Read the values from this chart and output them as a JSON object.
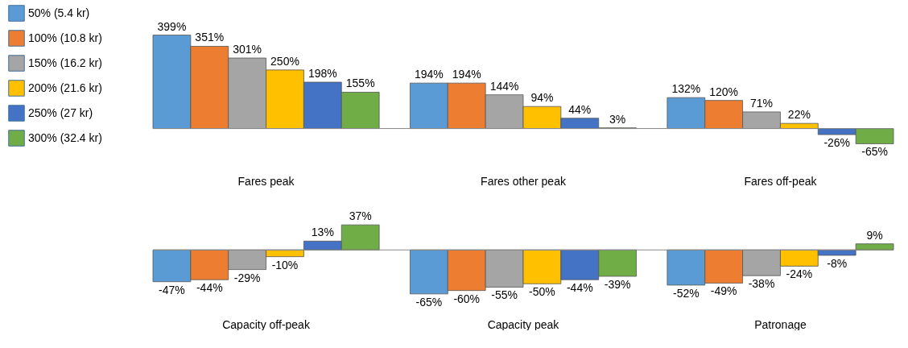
{
  "chart_data": [
    {
      "type": "bar",
      "categories": [
        "Fares peak",
        "Fares other peak",
        "Fares off-peak"
      ],
      "data_labels": true,
      "legend": "top left",
      "series": [
        {
          "name": "50% (5.4 kr)",
          "color": "#5b9bd5",
          "values": [
            399,
            194,
            132
          ],
          "value_labels": [
            "399%",
            "194%",
            "132%"
          ]
        },
        {
          "name": "100% (10.8 kr)",
          "color": "#ed7d31",
          "values": [
            351,
            194,
            120
          ],
          "value_labels": [
            "351%",
            "194%",
            "120%"
          ]
        },
        {
          "name": "150% (16.2 kr)",
          "color": "#a5a5a5",
          "values": [
            301,
            144,
            71
          ],
          "value_labels": [
            "301%",
            "144%",
            "71%"
          ]
        },
        {
          "name": "200% (21.6 kr)",
          "color": "#ffc000",
          "values": [
            250,
            94,
            22
          ],
          "value_labels": [
            "250%",
            "94%",
            "22%"
          ]
        },
        {
          "name": "250% (27 kr)",
          "color": "#4472c4",
          "values": [
            198,
            44,
            -26
          ],
          "value_labels": [
            "198%",
            "44%",
            "-26%"
          ]
        },
        {
          "name": "300% (32.4 kr)",
          "color": "#70ad47",
          "values": [
            155,
            3,
            -65
          ],
          "value_labels": [
            "155%",
            "3%",
            "-65%"
          ]
        }
      ]
    },
    {
      "type": "bar",
      "categories": [
        "Capacity off-peak",
        "Capacity peak",
        "Patronage"
      ],
      "data_labels": true,
      "series": [
        {
          "color": "#5b9bd5",
          "values": [
            -47,
            -65,
            -52
          ],
          "value_labels": [
            "-47%",
            "-65%",
            "-52%"
          ]
        },
        {
          "color": "#ed7d31",
          "values": [
            -44,
            -60,
            -49
          ],
          "value_labels": [
            "-44%",
            "-60%",
            "-49%"
          ]
        },
        {
          "color": "#a5a5a5",
          "values": [
            -29,
            -55,
            -38
          ],
          "value_labels": [
            "-29%",
            "-55%",
            "-38%"
          ]
        },
        {
          "color": "#ffc000",
          "values": [
            -10,
            -50,
            -24
          ],
          "value_labels": [
            "-10%",
            "-50%",
            "-24%"
          ]
        },
        {
          "color": "#4472c4",
          "values": [
            13,
            -44,
            -8
          ],
          "value_labels": [
            "13%",
            "-44%",
            "-8%"
          ]
        },
        {
          "color": "#70ad47",
          "values": [
            37,
            -39,
            9
          ],
          "value_labels": [
            "37%",
            "-39%",
            "9%"
          ]
        }
      ]
    }
  ]
}
